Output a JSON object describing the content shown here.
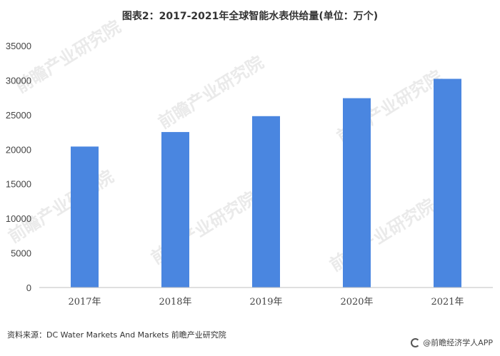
{
  "header": {
    "title": "图表2：2017-2021年全球智能水表供给量(单位：万个)"
  },
  "footer": {
    "source": "资料来源：DC Water Markets And Markets 前瞻产业研究院",
    "brand": "@前瞻经济学人APP"
  },
  "watermark": {
    "text": "前瞻产业研究院"
  },
  "colors": {
    "bar": "#4a86e0",
    "axis": "#bfbfbf"
  },
  "chart_data": {
    "type": "bar",
    "title": "图表2：2017-2021年全球智能水表供给量(单位：万个)",
    "categories": [
      "2017年",
      "2018年",
      "2019年",
      "2020年",
      "2021年"
    ],
    "values": [
      20400,
      22500,
      24800,
      27400,
      30200
    ],
    "ylim": [
      0,
      35000
    ],
    "yticks": [
      0,
      5000,
      10000,
      15000,
      20000,
      25000,
      30000,
      35000
    ],
    "grid": false,
    "legend": "none"
  }
}
